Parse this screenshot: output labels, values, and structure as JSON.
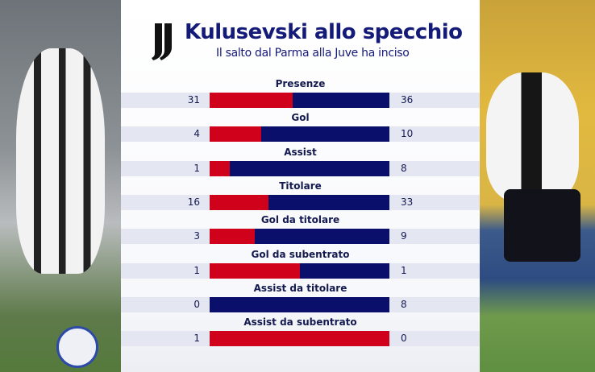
{
  "header": {
    "title": "Kulusevski allo specchio",
    "subtitle": "Il salto dal Parma alla Juve ha inciso",
    "logo": "juventus-logo"
  },
  "colors": {
    "left": "#d0021b",
    "right": "#0a0f6b",
    "title": "#141a78"
  },
  "chart_data": {
    "type": "bar",
    "orientation": "horizontal-stacked-comparison",
    "categories": [
      "Presenze",
      "Gol",
      "Assist",
      "Titolare",
      "Gol da titolare",
      "Gol da subentrato",
      "Assist da titolare",
      "Assist da subentrato"
    ],
    "series": [
      {
        "values": [
          31,
          4,
          1,
          16,
          3,
          1,
          0,
          1
        ],
        "color": "#d0021b"
      },
      {
        "values": [
          36,
          10,
          8,
          33,
          9,
          1,
          8,
          0
        ],
        "color": "#0a0f6b"
      }
    ],
    "grid": false
  }
}
